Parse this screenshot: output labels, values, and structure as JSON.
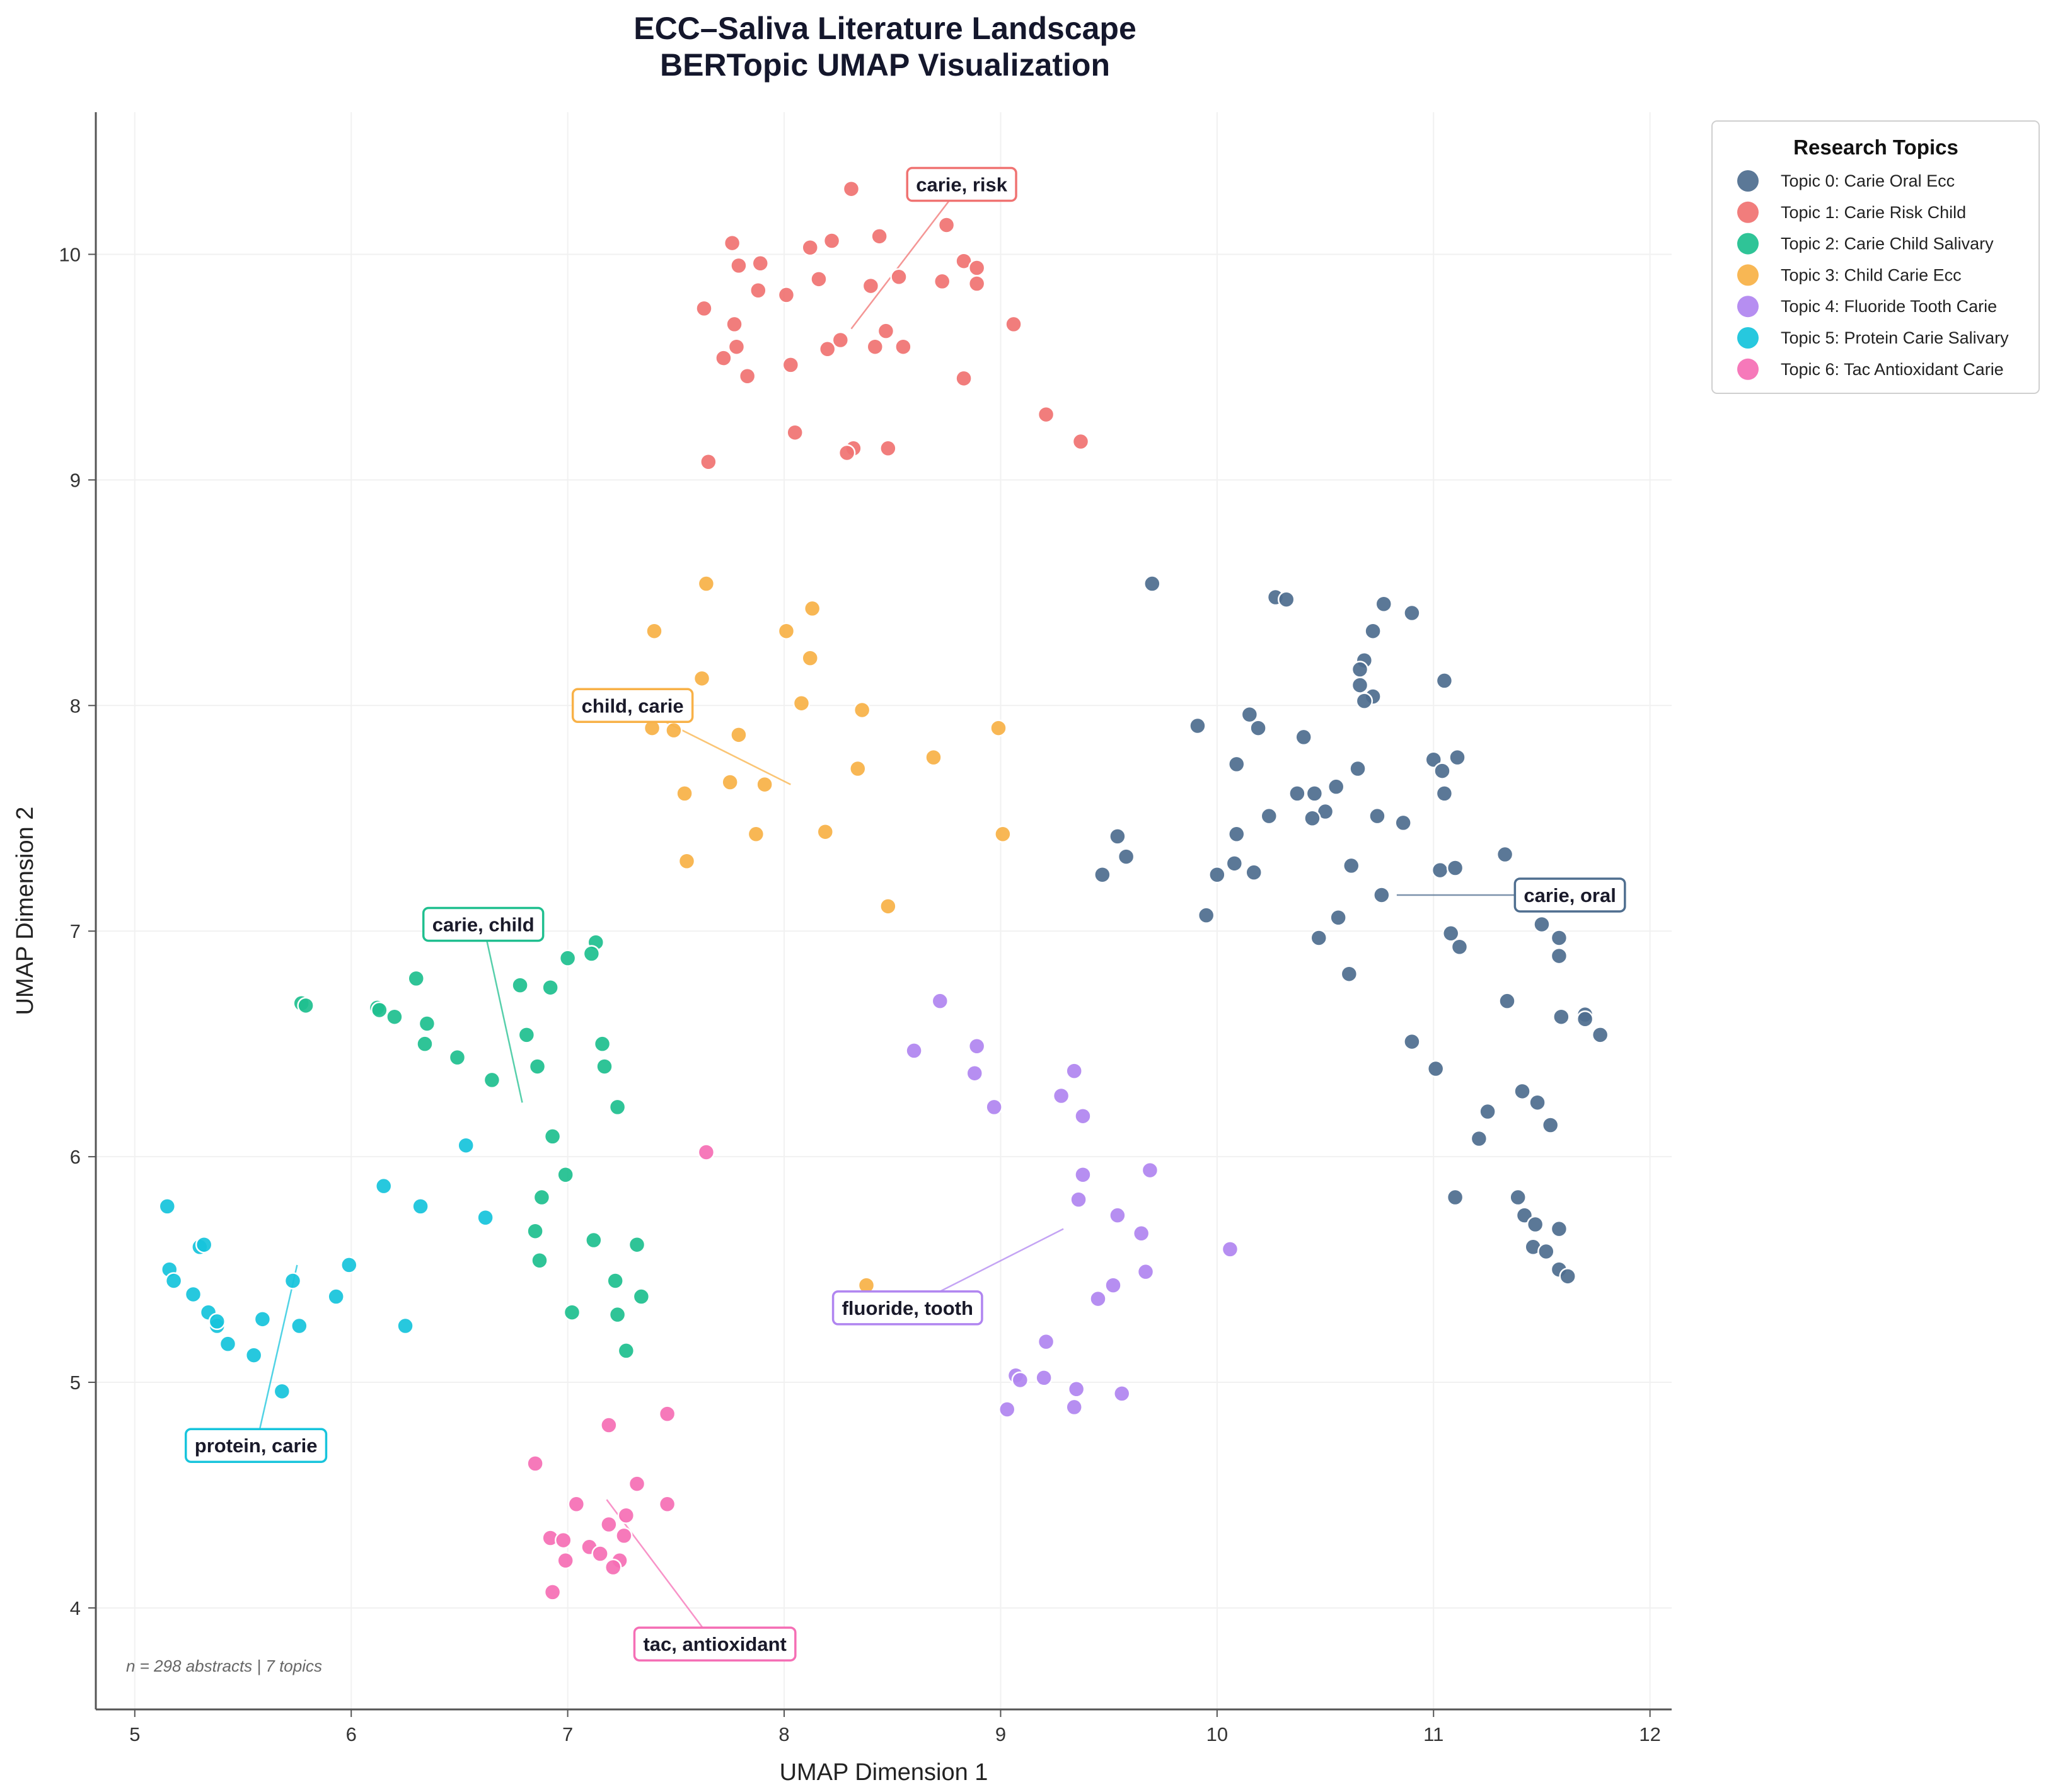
{
  "chart_data": {
    "type": "scatter",
    "title_lines": [
      "ECC–Saliva Literature Landscape",
      "BERTopic UMAP Visualization"
    ],
    "xlabel": "UMAP Dimension 1",
    "ylabel": "UMAP Dimension 2",
    "xlim": [
      4.82,
      12.1
    ],
    "ylim": [
      3.55,
      10.63
    ],
    "xticks": [
      5,
      6,
      7,
      8,
      9,
      10,
      11,
      12
    ],
    "yticks": [
      4,
      5,
      6,
      7,
      8,
      9,
      10
    ],
    "grid": true,
    "legend": {
      "title": "Research Topics",
      "position": "top-right-outside",
      "entries": [
        "Topic 0: Carie Oral Ecc",
        "Topic 1: Carie Risk Child",
        "Topic 2: Carie Child Salivary",
        "Topic 3: Child Carie Ecc",
        "Topic 4: Fluoride Tooth Carie",
        "Topic 5: Protein Carie Salivary",
        "Topic 6: Tac Antioxidant Carie"
      ]
    },
    "footnote": "n = 298 abstracts | 7 topics",
    "series": [
      {
        "name": "Topic 0: Carie Oral Ecc",
        "color": "#4f6e8f",
        "points": [
          [
            9.7,
            8.54
          ],
          [
            10.27,
            8.48
          ],
          [
            10.32,
            8.47
          ],
          [
            10.77,
            8.45
          ],
          [
            10.9,
            8.41
          ],
          [
            10.72,
            8.33
          ],
          [
            10.68,
            8.2
          ],
          [
            10.66,
            8.16
          ],
          [
            11.05,
            8.11
          ],
          [
            10.66,
            8.09
          ],
          [
            10.72,
            8.04
          ],
          [
            10.68,
            8.02
          ],
          [
            10.15,
            7.96
          ],
          [
            9.91,
            7.91
          ],
          [
            10.19,
            7.9
          ],
          [
            10.4,
            7.86
          ],
          [
            11.0,
            7.76
          ],
          [
            11.11,
            7.77
          ],
          [
            10.09,
            7.74
          ],
          [
            10.65,
            7.72
          ],
          [
            11.04,
            7.71
          ],
          [
            10.55,
            7.64
          ],
          [
            10.37,
            7.61
          ],
          [
            10.45,
            7.61
          ],
          [
            11.05,
            7.61
          ],
          [
            10.5,
            7.53
          ],
          [
            10.24,
            7.51
          ],
          [
            10.74,
            7.51
          ],
          [
            10.44,
            7.5
          ],
          [
            10.86,
            7.48
          ],
          [
            10.09,
            7.43
          ],
          [
            9.54,
            7.42
          ],
          [
            11.33,
            7.34
          ],
          [
            9.58,
            7.33
          ],
          [
            10.08,
            7.3
          ],
          [
            10.62,
            7.29
          ],
          [
            11.03,
            7.27
          ],
          [
            11.1,
            7.28
          ],
          [
            9.47,
            7.25
          ],
          [
            10.0,
            7.25
          ],
          [
            10.17,
            7.26
          ],
          [
            10.76,
            7.16
          ],
          [
            10.56,
            7.06
          ],
          [
            9.95,
            7.07
          ],
          [
            11.5,
            7.03
          ],
          [
            11.08,
            6.99
          ],
          [
            10.47,
            6.97
          ],
          [
            11.58,
            6.97
          ],
          [
            11.12,
            6.93
          ],
          [
            11.58,
            6.89
          ],
          [
            10.61,
            6.81
          ],
          [
            11.34,
            6.69
          ],
          [
            11.7,
            6.63
          ],
          [
            11.59,
            6.62
          ],
          [
            11.7,
            6.61
          ],
          [
            11.77,
            6.54
          ],
          [
            10.9,
            6.51
          ],
          [
            11.01,
            6.39
          ],
          [
            11.41,
            6.29
          ],
          [
            11.48,
            6.24
          ],
          [
            11.25,
            6.2
          ],
          [
            11.54,
            6.14
          ],
          [
            11.21,
            6.08
          ],
          [
            11.39,
            5.82
          ],
          [
            11.1,
            5.82
          ],
          [
            11.42,
            5.74
          ],
          [
            11.47,
            5.7
          ],
          [
            11.58,
            5.68
          ],
          [
            11.46,
            5.6
          ],
          [
            11.52,
            5.58
          ],
          [
            11.58,
            5.5
          ],
          [
            11.62,
            5.47
          ]
        ]
      },
      {
        "name": "Topic 1: Carie Risk Child",
        "color": "#f07372",
        "points": [
          [
            8.31,
            10.29
          ],
          [
            8.75,
            10.13
          ],
          [
            8.44,
            10.08
          ],
          [
            8.22,
            10.06
          ],
          [
            7.76,
            10.05
          ],
          [
            8.12,
            10.03
          ],
          [
            8.83,
            9.97
          ],
          [
            7.79,
            9.95
          ],
          [
            7.89,
            9.96
          ],
          [
            8.89,
            9.94
          ],
          [
            8.16,
            9.89
          ],
          [
            8.53,
            9.9
          ],
          [
            8.73,
            9.88
          ],
          [
            8.89,
            9.87
          ],
          [
            8.4,
            9.86
          ],
          [
            7.88,
            9.84
          ],
          [
            8.01,
            9.82
          ],
          [
            7.63,
            9.76
          ],
          [
            9.06,
            9.69
          ],
          [
            7.77,
            9.69
          ],
          [
            8.47,
            9.66
          ],
          [
            8.26,
            9.62
          ],
          [
            8.2,
            9.58
          ],
          [
            7.78,
            9.59
          ],
          [
            8.42,
            9.59
          ],
          [
            8.55,
            9.59
          ],
          [
            7.72,
            9.54
          ],
          [
            8.03,
            9.51
          ],
          [
            7.83,
            9.46
          ],
          [
            8.83,
            9.45
          ],
          [
            9.21,
            9.29
          ],
          [
            8.05,
            9.21
          ],
          [
            9.37,
            9.17
          ],
          [
            8.32,
            9.14
          ],
          [
            8.29,
            9.12
          ],
          [
            8.48,
            9.14
          ],
          [
            7.65,
            9.08
          ]
        ]
      },
      {
        "name": "Topic 2: Carie Child Salivary",
        "color": "#1fbf8f",
        "points": [
          [
            7.13,
            6.95
          ],
          [
            7.0,
            6.88
          ],
          [
            7.11,
            6.9
          ],
          [
            6.3,
            6.79
          ],
          [
            6.78,
            6.76
          ],
          [
            6.92,
            6.75
          ],
          [
            5.77,
            6.68
          ],
          [
            5.79,
            6.67
          ],
          [
            6.12,
            6.66
          ],
          [
            6.13,
            6.65
          ],
          [
            6.2,
            6.62
          ],
          [
            6.35,
            6.59
          ],
          [
            6.81,
            6.54
          ],
          [
            6.34,
            6.5
          ],
          [
            7.16,
            6.5
          ],
          [
            6.49,
            6.44
          ],
          [
            6.86,
            6.4
          ],
          [
            7.17,
            6.4
          ],
          [
            6.65,
            6.34
          ],
          [
            7.23,
            6.22
          ],
          [
            6.93,
            6.09
          ],
          [
            6.99,
            5.92
          ],
          [
            6.88,
            5.82
          ],
          [
            6.85,
            5.67
          ],
          [
            7.12,
            5.63
          ],
          [
            7.32,
            5.61
          ],
          [
            6.87,
            5.54
          ],
          [
            7.22,
            5.45
          ],
          [
            7.34,
            5.38
          ],
          [
            7.02,
            5.31
          ],
          [
            7.23,
            5.3
          ],
          [
            7.27,
            5.14
          ]
        ]
      },
      {
        "name": "Topic 3: Child Carie Ecc",
        "color": "#f8b147",
        "points": [
          [
            7.64,
            8.54
          ],
          [
            8.13,
            8.43
          ],
          [
            7.4,
            8.33
          ],
          [
            8.01,
            8.33
          ],
          [
            8.12,
            8.21
          ],
          [
            7.62,
            8.12
          ],
          [
            8.08,
            8.01
          ],
          [
            8.36,
            7.98
          ],
          [
            7.39,
            7.9
          ],
          [
            7.49,
            7.89
          ],
          [
            8.99,
            7.9
          ],
          [
            7.79,
            7.87
          ],
          [
            8.69,
            7.77
          ],
          [
            8.34,
            7.72
          ],
          [
            7.75,
            7.66
          ],
          [
            7.91,
            7.65
          ],
          [
            7.54,
            7.61
          ],
          [
            8.19,
            7.44
          ],
          [
            7.87,
            7.43
          ],
          [
            9.01,
            7.43
          ],
          [
            7.55,
            7.31
          ],
          [
            8.48,
            7.11
          ],
          [
            8.38,
            5.43
          ]
        ]
      },
      {
        "name": "Topic 4: Fluoride Tooth Carie",
        "color": "#b085f0",
        "points": [
          [
            8.72,
            6.69
          ],
          [
            8.89,
            6.49
          ],
          [
            8.6,
            6.47
          ],
          [
            9.34,
            6.38
          ],
          [
            8.88,
            6.37
          ],
          [
            9.28,
            6.27
          ],
          [
            8.97,
            6.22
          ],
          [
            9.38,
            6.18
          ],
          [
            9.69,
            5.94
          ],
          [
            9.38,
            5.92
          ],
          [
            9.36,
            5.81
          ],
          [
            9.54,
            5.74
          ],
          [
            9.65,
            5.66
          ],
          [
            10.06,
            5.59
          ],
          [
            9.67,
            5.49
          ],
          [
            9.52,
            5.43
          ],
          [
            9.45,
            5.37
          ],
          [
            9.21,
            5.18
          ],
          [
            9.07,
            5.03
          ],
          [
            9.2,
            5.02
          ],
          [
            9.09,
            5.01
          ],
          [
            9.35,
            4.97
          ],
          [
            9.56,
            4.95
          ],
          [
            9.03,
            4.88
          ],
          [
            9.34,
            4.89
          ]
        ]
      },
      {
        "name": "Topic 5: Protein Carie Salivary",
        "color": "#17c4dc",
        "points": [
          [
            6.53,
            6.05
          ],
          [
            6.15,
            5.87
          ],
          [
            5.15,
            5.78
          ],
          [
            6.32,
            5.78
          ],
          [
            6.62,
            5.73
          ],
          [
            5.3,
            5.6
          ],
          [
            5.32,
            5.61
          ],
          [
            5.99,
            5.52
          ],
          [
            5.16,
            5.5
          ],
          [
            5.18,
            5.45
          ],
          [
            5.73,
            5.45
          ],
          [
            5.27,
            5.39
          ],
          [
            5.93,
            5.38
          ],
          [
            5.34,
            5.31
          ],
          [
            5.38,
            5.25
          ],
          [
            5.38,
            5.27
          ],
          [
            5.59,
            5.28
          ],
          [
            5.76,
            5.25
          ],
          [
            6.25,
            5.25
          ],
          [
            5.43,
            5.17
          ],
          [
            5.55,
            5.12
          ],
          [
            5.68,
            4.96
          ]
        ]
      },
      {
        "name": "Topic 6: Tac Antioxidant Carie",
        "color": "#f56fb5",
        "points": [
          [
            7.64,
            6.02
          ],
          [
            7.46,
            4.86
          ],
          [
            7.19,
            4.81
          ],
          [
            6.85,
            4.64
          ],
          [
            7.32,
            4.55
          ],
          [
            7.04,
            4.46
          ],
          [
            7.46,
            4.46
          ],
          [
            7.27,
            4.41
          ],
          [
            7.19,
            4.37
          ],
          [
            6.92,
            4.31
          ],
          [
            6.98,
            4.3
          ],
          [
            7.26,
            4.32
          ],
          [
            7.1,
            4.27
          ],
          [
            7.15,
            4.24
          ],
          [
            6.99,
            4.21
          ],
          [
            7.24,
            4.21
          ],
          [
            7.21,
            4.18
          ],
          [
            6.93,
            4.07
          ]
        ]
      }
    ],
    "annotations": [
      {
        "text": "carie, risk",
        "series": 1,
        "box_xy": [
          8.82,
          10.31
        ],
        "point_xy": [
          8.31,
          9.67
        ]
      },
      {
        "text": "child, carie",
        "series": 3,
        "box_xy": [
          7.3,
          8.0
        ],
        "point_xy": [
          8.03,
          7.65
        ]
      },
      {
        "text": "carie, oral",
        "series": 0,
        "box_xy": [
          11.63,
          7.16
        ],
        "point_xy": [
          10.83,
          7.16
        ]
      },
      {
        "text": "carie, child",
        "series": 2,
        "box_xy": [
          6.61,
          7.03
        ],
        "point_xy": [
          6.79,
          6.24
        ]
      },
      {
        "text": "fluoride, tooth",
        "series": 4,
        "box_xy": [
          8.57,
          5.33
        ],
        "point_xy": [
          9.29,
          5.68
        ]
      },
      {
        "text": "protein, carie",
        "series": 5,
        "box_xy": [
          5.56,
          4.72
        ],
        "point_xy": [
          5.75,
          5.52
        ]
      },
      {
        "text": "tac, antioxidant",
        "series": 6,
        "box_xy": [
          7.68,
          3.84
        ],
        "point_xy": [
          7.18,
          4.48
        ]
      }
    ]
  }
}
